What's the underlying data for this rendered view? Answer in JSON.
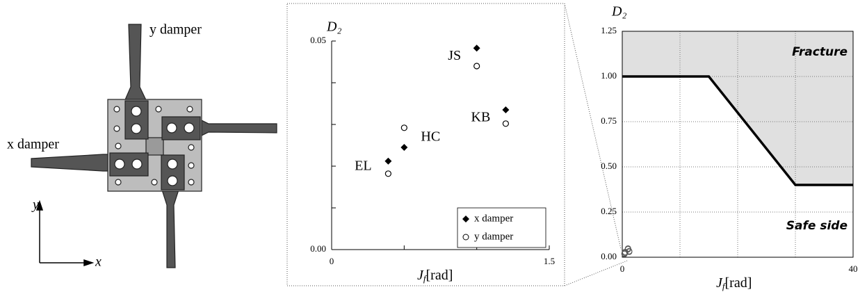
{
  "diagram": {
    "y_label": "y damper",
    "x_label": "x damper",
    "y_axis": "y",
    "x_axis": "x"
  },
  "chart_data": [
    {
      "type": "scatter",
      "ylabel": "D₂",
      "xlabel": {
        "symbol": "J",
        "sub": "f",
        "unit": "[rad]"
      },
      "x": [
        0.39,
        0.5,
        1.0,
        1.2
      ],
      "annotations": [
        "EL",
        "HC",
        "JS",
        "KB"
      ],
      "series": [
        {
          "name": "x damper",
          "marker": "diamond",
          "color": "#000000",
          "values": [
            0.0212,
            0.0245,
            0.0483,
            0.0335
          ]
        },
        {
          "name": "y damper",
          "marker": "circle",
          "color": "#000000",
          "values": [
            0.0182,
            0.0292,
            0.044,
            0.0302
          ]
        }
      ],
      "xlim": [
        0,
        1.5
      ],
      "xticks": [
        0,
        1.5
      ],
      "xminorticks": [
        0.5,
        1.0
      ],
      "ylim": [
        0,
        0.05
      ],
      "yticks": [
        {
          "value": 0,
          "label": "0.00"
        },
        {
          "value": 0.05,
          "label": "0.05"
        }
      ],
      "yminorticks": [
        0.01,
        0.02,
        0.03,
        0.04
      ],
      "legend": "lower right"
    },
    {
      "type": "line",
      "ylabel": "D₂",
      "xlabel": {
        "symbol": "J",
        "sub": "f",
        "unit": "[rad]"
      },
      "x": [
        0,
        15,
        30,
        40
      ],
      "values": [
        1.0,
        1.0,
        0.4,
        0.4
      ],
      "color": "#000000",
      "fill_above": "#e0e0e0",
      "annotations": [
        "Fracture",
        "Safe side"
      ],
      "xlim": [
        0,
        40
      ],
      "xticks": [
        0,
        40
      ],
      "xgrid": [
        10,
        20,
        30
      ],
      "ylim": [
        0,
        1.25
      ],
      "yticks": [
        {
          "value": 0,
          "label": "0.00"
        },
        {
          "value": 0.25,
          "label": "0.25"
        },
        {
          "value": 0.5,
          "label": "0.50"
        },
        {
          "value": 0.75,
          "label": "0.75"
        },
        {
          "value": 1.0,
          "label": "1.00"
        },
        {
          "value": 1.25,
          "label": "1.25"
        }
      ],
      "grid": true
    }
  ]
}
